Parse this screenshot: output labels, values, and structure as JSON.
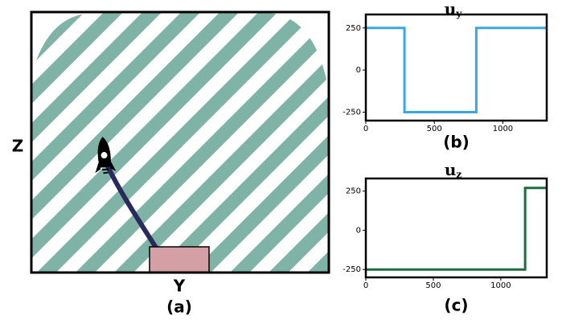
{
  "chart_data": [
    {
      "type": "diagram",
      "xlabel": "Y",
      "ylabel": "Z",
      "caption": "(a)"
    },
    {
      "type": "line",
      "title": "u",
      "title_subscript": "y",
      "caption": "(b)",
      "x": [
        0,
        282,
        282,
        806,
        806,
        1320
      ],
      "values": [
        250,
        250,
        -250,
        -250,
        250,
        250
      ],
      "color": "#3aa8e0",
      "xlim": [
        0,
        1320
      ],
      "ylim": [
        -300,
        330
      ],
      "xticks": [
        0,
        500,
        1000
      ],
      "yticks": [
        -250,
        0,
        250
      ]
    },
    {
      "type": "line",
      "title": "u",
      "title_subscript": "z",
      "caption": "(c)",
      "x": [
        0,
        1180,
        1180,
        1340
      ],
      "values": [
        -250,
        -250,
        270,
        270
      ],
      "color": "#1e6b3c",
      "xlim": [
        0,
        1340
      ],
      "ylim": [
        -300,
        330
      ],
      "xticks": [
        0,
        500,
        1000
      ],
      "yticks": [
        -250,
        0,
        250
      ]
    }
  ]
}
